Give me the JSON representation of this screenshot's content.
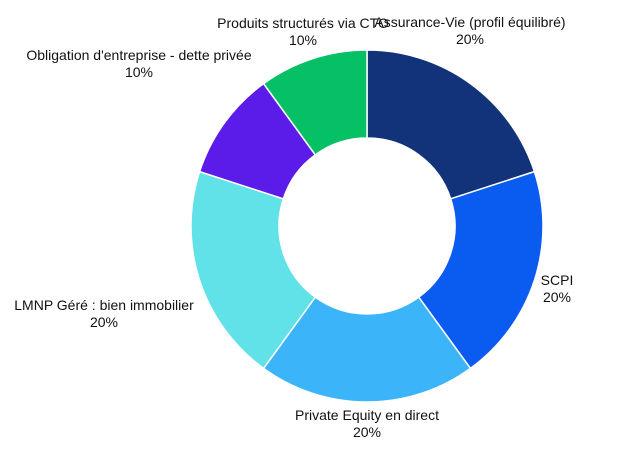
{
  "chart_data": {
    "type": "pie",
    "donut": true,
    "start_angle_deg": 0,
    "legend": "none",
    "slices": [
      {
        "name": "Assurance-Vie (profil équilibré)",
        "value": 20,
        "value_label": "20%",
        "color": "#12327a"
      },
      {
        "name": "SCPI",
        "value": 20,
        "value_label": "20%",
        "color": "#0a5bf0"
      },
      {
        "name": "Private Equity en direct",
        "value": 20,
        "value_label": "20%",
        "color": "#3cb4fa"
      },
      {
        "name": "LMNP Géré : bien immobilier",
        "value": 20,
        "value_label": "20%",
        "color": "#60e2e8"
      },
      {
        "name": "Obligation d'entreprise - dette privée",
        "value": 10,
        "value_label": "10%",
        "color": "#5b1be8"
      },
      {
        "name": "Produits structurés via CTO",
        "value": 10,
        "value_label": "10%",
        "color": "#05c064"
      }
    ]
  }
}
